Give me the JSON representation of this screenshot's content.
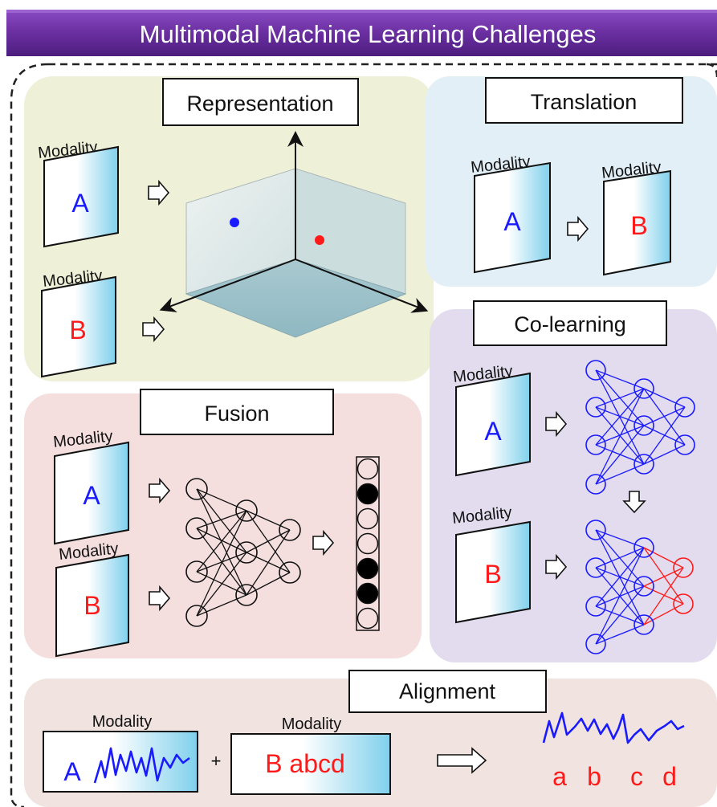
{
  "header": {
    "title": "Multimodal Machine Learning Challenges"
  },
  "colors": {
    "banner": "#6a2fa0",
    "representation_bg": "#eef0d8",
    "translation_bg": "#e2eff6",
    "fusion_bg": "#f4dede",
    "colearning_bg": "#e2dcee",
    "alignment_bg": "#f1e4e0",
    "modality_a": "#1a1aff",
    "modality_b": "#ff1a1a"
  },
  "panels": {
    "representation": {
      "title": "Representation",
      "cards": [
        {
          "label": "Modality",
          "letter": "A"
        },
        {
          "label": "Modality",
          "letter": "B"
        }
      ]
    },
    "translation": {
      "title": "Translation",
      "cards": [
        {
          "label": "Modality",
          "letter": "A"
        },
        {
          "label": "Modality",
          "letter": "B"
        }
      ]
    },
    "fusion": {
      "title": "Fusion",
      "cards": [
        {
          "label": "Modality",
          "letter": "A"
        },
        {
          "label": "Modality",
          "letter": "B"
        }
      ]
    },
    "colearning": {
      "title": "Co-learning",
      "cards": [
        {
          "label": "Modality",
          "letter": "A"
        },
        {
          "label": "Modality",
          "letter": "B"
        }
      ]
    },
    "alignment": {
      "title": "Alignment",
      "card_a": {
        "label": "Modality",
        "letter": "A"
      },
      "card_b": {
        "label": "Modality",
        "text": "B abcd"
      },
      "plus": "+",
      "output_letters": [
        "a",
        "b",
        "c",
        "d"
      ]
    }
  }
}
